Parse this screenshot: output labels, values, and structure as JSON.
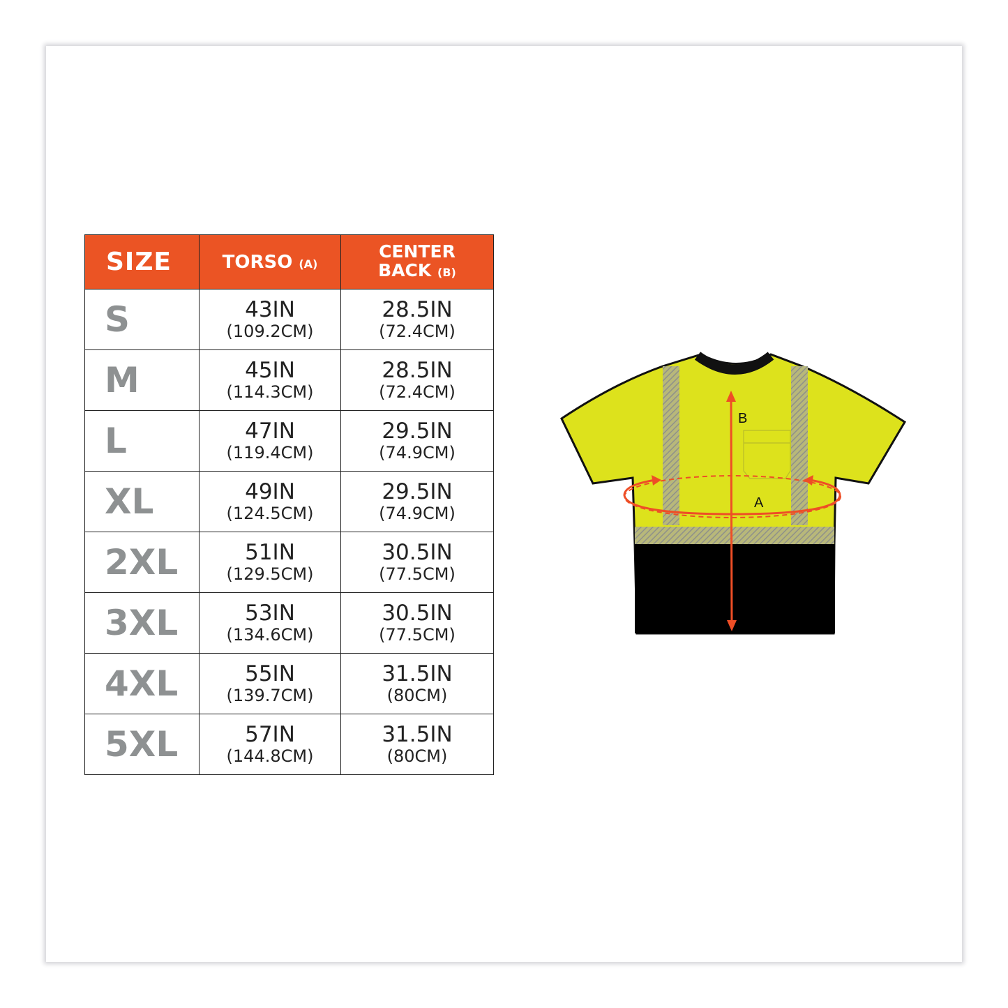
{
  "headers": {
    "size": "SIZE",
    "torso": "TORSO",
    "torso_tag": "(A)",
    "back_line1": "CENTER",
    "back_line2": "BACK",
    "back_tag": "(B)"
  },
  "rows": [
    {
      "size": "S",
      "torso_in": "43IN",
      "torso_cm": "(109.2CM)",
      "back_in": "28.5IN",
      "back_cm": "(72.4CM)"
    },
    {
      "size": "M",
      "torso_in": "45IN",
      "torso_cm": "(114.3CM)",
      "back_in": "28.5IN",
      "back_cm": "(72.4CM)"
    },
    {
      "size": "L",
      "torso_in": "47IN",
      "torso_cm": "(119.4CM)",
      "back_in": "29.5IN",
      "back_cm": "(74.9CM)"
    },
    {
      "size": "XL",
      "torso_in": "49IN",
      "torso_cm": "(124.5CM)",
      "back_in": "29.5IN",
      "back_cm": "(74.9CM)"
    },
    {
      "size": "2XL",
      "torso_in": "51IN",
      "torso_cm": "(129.5CM)",
      "back_in": "30.5IN",
      "back_cm": "(77.5CM)"
    },
    {
      "size": "3XL",
      "torso_in": "53IN",
      "torso_cm": "(134.6CM)",
      "back_in": "30.5IN",
      "back_cm": "(77.5CM)"
    },
    {
      "size": "4XL",
      "torso_in": "55IN",
      "torso_cm": "(139.7CM)",
      "back_in": "31.5IN",
      "back_cm": "(80CM)"
    },
    {
      "size": "5XL",
      "torso_in": "57IN",
      "torso_cm": "(144.8CM)",
      "back_in": "31.5IN",
      "back_cm": "(80CM)"
    }
  ],
  "diagram": {
    "label_a": "A",
    "label_b": "B"
  },
  "colors": {
    "header": "#eb5424",
    "shirt_yellow": "#dde21c",
    "shirt_black": "#000000",
    "arrow": "#ee4e26",
    "size_text": "#8e9192"
  }
}
